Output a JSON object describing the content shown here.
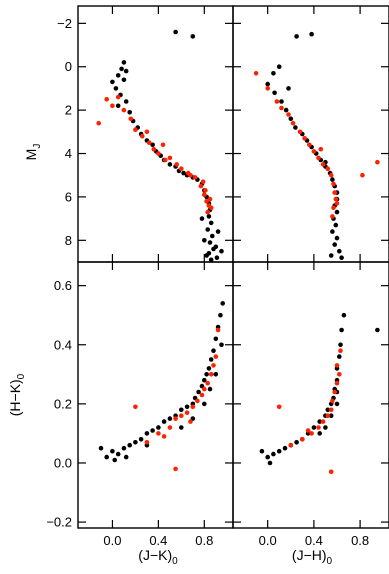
{
  "chart_data": [
    {
      "type": "scatter",
      "panel": "top-left",
      "ylabel_main": "M",
      "ylabel_sub": "J",
      "xlim": [
        -0.3,
        1.05
      ],
      "ylim": [
        9.0,
        -2.8
      ],
      "y_inverted": true,
      "yticks": [
        -2,
        0,
        2,
        4,
        6,
        8
      ],
      "ytick_labels": [
        "−2",
        "0",
        "2",
        "4",
        "6",
        "8"
      ],
      "series": [
        {
          "color": "#000000",
          "points": [
            [
              0.05,
              0.4
            ],
            [
              0.08,
              0.1
            ],
            [
              0.1,
              -0.2
            ],
            [
              0.0,
              0.7
            ],
            [
              0.1,
              0.6
            ],
            [
              0.03,
              1.0
            ],
            [
              0.07,
              1.3
            ],
            [
              0.12,
              1.6
            ],
            [
              0.05,
              1.8
            ],
            [
              0.15,
              2.1
            ],
            [
              0.18,
              2.5
            ],
            [
              0.22,
              2.8
            ],
            [
              0.25,
              3.1
            ],
            [
              0.3,
              3.4
            ],
            [
              0.35,
              3.6
            ],
            [
              0.38,
              3.9
            ],
            [
              0.42,
              4.1
            ],
            [
              0.45,
              4.3
            ],
            [
              0.5,
              4.5
            ],
            [
              0.55,
              4.6
            ],
            [
              0.58,
              4.8
            ],
            [
              0.62,
              4.9
            ],
            [
              0.65,
              5.0
            ],
            [
              0.7,
              5.1
            ],
            [
              0.74,
              5.2
            ],
            [
              0.78,
              5.4
            ],
            [
              0.8,
              5.7
            ],
            [
              0.82,
              6.0
            ],
            [
              0.84,
              6.3
            ],
            [
              0.85,
              6.6
            ],
            [
              0.84,
              6.9
            ],
            [
              0.86,
              7.2
            ],
            [
              0.83,
              7.5
            ],
            [
              0.87,
              7.8
            ],
            [
              0.85,
              8.1
            ],
            [
              0.88,
              8.4
            ],
            [
              0.84,
              8.6
            ],
            [
              0.9,
              8.3
            ],
            [
              0.8,
              8.0
            ],
            [
              0.92,
              7.6
            ],
            [
              0.78,
              7.0
            ],
            [
              0.91,
              8.8
            ],
            [
              0.86,
              8.9
            ],
            [
              0.82,
              8.7
            ],
            [
              0.55,
              -1.6
            ],
            [
              0.7,
              -1.4
            ],
            [
              0.12,
              0.2
            ],
            [
              0.95,
              8.5
            ]
          ]
        },
        {
          "color": "#ff2200",
          "points": [
            [
              -0.05,
              1.5
            ],
            [
              0.0,
              1.8
            ],
            [
              -0.12,
              2.6
            ],
            [
              0.05,
              1.4
            ],
            [
              0.1,
              2.0
            ],
            [
              0.16,
              2.4
            ],
            [
              0.2,
              2.9
            ],
            [
              0.26,
              3.2
            ],
            [
              0.32,
              3.5
            ],
            [
              0.36,
              3.8
            ],
            [
              0.4,
              4.0
            ],
            [
              0.46,
              4.3
            ],
            [
              0.5,
              4.2
            ],
            [
              0.56,
              4.5
            ],
            [
              0.6,
              4.7
            ],
            [
              0.66,
              4.9
            ],
            [
              0.72,
              5.1
            ],
            [
              0.77,
              5.5
            ],
            [
              0.8,
              5.9
            ],
            [
              0.82,
              6.2
            ],
            [
              0.84,
              6.4
            ],
            [
              0.83,
              6.7
            ],
            [
              0.85,
              6.1
            ],
            [
              0.81,
              5.7
            ],
            [
              0.86,
              6.5
            ],
            [
              0.79,
              5.3
            ],
            [
              0.68,
              5.0
            ],
            [
              0.3,
              3.0
            ],
            [
              0.44,
              3.6
            ]
          ]
        }
      ]
    },
    {
      "type": "scatter",
      "panel": "top-right",
      "xlim": [
        -0.3,
        1.05
      ],
      "ylim": [
        9.0,
        -2.8
      ],
      "y_inverted": true,
      "series": [
        {
          "color": "#000000",
          "points": [
            [
              0.05,
              0.3
            ],
            [
              0.1,
              0.0
            ],
            [
              0.0,
              0.8
            ],
            [
              0.06,
              1.2
            ],
            [
              0.12,
              1.6
            ],
            [
              0.16,
              2.0
            ],
            [
              0.2,
              2.4
            ],
            [
              0.24,
              2.8
            ],
            [
              0.3,
              3.1
            ],
            [
              0.34,
              3.4
            ],
            [
              0.38,
              3.7
            ],
            [
              0.42,
              4.0
            ],
            [
              0.46,
              4.3
            ],
            [
              0.5,
              4.6
            ],
            [
              0.54,
              4.9
            ],
            [
              0.56,
              5.2
            ],
            [
              0.58,
              5.5
            ],
            [
              0.6,
              5.8
            ],
            [
              0.6,
              6.1
            ],
            [
              0.58,
              6.4
            ],
            [
              0.6,
              6.7
            ],
            [
              0.57,
              7.0
            ],
            [
              0.59,
              7.3
            ],
            [
              0.56,
              7.6
            ],
            [
              0.6,
              7.9
            ],
            [
              0.58,
              8.2
            ],
            [
              0.62,
              8.5
            ],
            [
              0.55,
              8.7
            ],
            [
              0.64,
              8.8
            ],
            [
              0.25,
              -1.4
            ],
            [
              0.38,
              -1.5
            ],
            [
              0.18,
              1.0
            ],
            [
              0.5,
              4.4
            ]
          ]
        },
        {
          "color": "#ff2200",
          "points": [
            [
              -0.1,
              0.3
            ],
            [
              0.0,
              1.0
            ],
            [
              0.08,
              1.6
            ],
            [
              0.12,
              1.9
            ],
            [
              0.18,
              2.2
            ],
            [
              0.22,
              2.6
            ],
            [
              0.28,
              3.0
            ],
            [
              0.32,
              3.3
            ],
            [
              0.36,
              3.6
            ],
            [
              0.4,
              3.9
            ],
            [
              0.44,
              4.2
            ],
            [
              0.48,
              4.5
            ],
            [
              0.52,
              4.7
            ],
            [
              0.55,
              5.0
            ],
            [
              0.57,
              5.4
            ],
            [
              0.58,
              5.8
            ],
            [
              0.59,
              6.1
            ],
            [
              0.57,
              6.5
            ],
            [
              0.6,
              6.3
            ],
            [
              0.56,
              6.9
            ],
            [
              0.95,
              4.4
            ],
            [
              0.82,
              5.0
            ],
            [
              0.46,
              3.8
            ]
          ]
        }
      ]
    },
    {
      "type": "scatter",
      "panel": "bottom-left",
      "xlabel_main": "(J−K)",
      "xlabel_sub": "0",
      "ylabel_main": "(H−K)",
      "ylabel_sub": "0",
      "xlim": [
        -0.3,
        1.05
      ],
      "ylim": [
        -0.22,
        0.68
      ],
      "xticks": [
        0.0,
        0.4,
        0.8
      ],
      "xtick_labels": [
        "0.0",
        "0.4",
        "0.8"
      ],
      "yticks": [
        -0.2,
        0.0,
        0.2,
        0.4,
        0.6
      ],
      "ytick_labels": [
        "−0.2",
        "0.0",
        "0.2",
        "0.4",
        "0.6"
      ],
      "series": [
        {
          "color": "#000000",
          "points": [
            [
              -0.05,
              0.02
            ],
            [
              0.0,
              0.04
            ],
            [
              0.05,
              0.03
            ],
            [
              0.1,
              0.05
            ],
            [
              0.15,
              0.06
            ],
            [
              0.2,
              0.07
            ],
            [
              0.25,
              0.08
            ],
            [
              0.3,
              0.1
            ],
            [
              0.35,
              0.11
            ],
            [
              0.4,
              0.12
            ],
            [
              0.45,
              0.14
            ],
            [
              0.5,
              0.15
            ],
            [
              0.55,
              0.16
            ],
            [
              0.6,
              0.18
            ],
            [
              0.65,
              0.19
            ],
            [
              0.7,
              0.2
            ],
            [
              0.72,
              0.22
            ],
            [
              0.75,
              0.24
            ],
            [
              0.78,
              0.26
            ],
            [
              0.8,
              0.28
            ],
            [
              0.82,
              0.3
            ],
            [
              0.84,
              0.32
            ],
            [
              0.86,
              0.35
            ],
            [
              0.88,
              0.38
            ],
            [
              0.9,
              0.42
            ],
            [
              0.92,
              0.46
            ],
            [
              0.94,
              0.5
            ],
            [
              0.96,
              0.54
            ],
            [
              0.85,
              0.25
            ],
            [
              0.8,
              0.2
            ],
            [
              0.9,
              0.3
            ],
            [
              0.7,
              0.15
            ],
            [
              0.6,
              0.12
            ],
            [
              0.12,
              0.02
            ],
            [
              0.02,
              0.01
            ],
            [
              0.3,
              0.06
            ],
            [
              -0.1,
              0.05
            ],
            [
              0.95,
              0.4
            ]
          ]
        },
        {
          "color": "#ff2200",
          "points": [
            [
              0.3,
              0.07
            ],
            [
              0.4,
              0.1
            ],
            [
              0.5,
              0.12
            ],
            [
              0.55,
              0.15
            ],
            [
              0.6,
              0.16
            ],
            [
              0.65,
              0.17
            ],
            [
              0.7,
              0.19
            ],
            [
              0.74,
              0.21
            ],
            [
              0.78,
              0.23
            ],
            [
              0.8,
              0.25
            ],
            [
              0.83,
              0.27
            ],
            [
              0.86,
              0.3
            ],
            [
              0.88,
              0.33
            ],
            [
              0.9,
              0.36
            ],
            [
              0.92,
              0.45
            ],
            [
              0.2,
              0.19
            ],
            [
              0.55,
              -0.02
            ],
            [
              0.45,
              0.09
            ],
            [
              0.68,
              0.14
            ]
          ]
        }
      ]
    },
    {
      "type": "scatter",
      "panel": "bottom-right",
      "xlabel_main": "(J−H)",
      "xlabel_sub": "0",
      "xlim": [
        -0.3,
        1.05
      ],
      "ylim": [
        -0.22,
        0.68
      ],
      "xticks": [
        0.0,
        0.4,
        0.8
      ],
      "xtick_labels": [
        "0.0",
        "0.4",
        "0.8"
      ],
      "series": [
        {
          "color": "#000000",
          "points": [
            [
              0.0,
              0.02
            ],
            [
              0.05,
              0.03
            ],
            [
              0.1,
              0.04
            ],
            [
              0.15,
              0.05
            ],
            [
              0.2,
              0.06
            ],
            [
              0.25,
              0.07
            ],
            [
              0.3,
              0.08
            ],
            [
              0.35,
              0.1
            ],
            [
              0.4,
              0.12
            ],
            [
              0.45,
              0.14
            ],
            [
              0.5,
              0.16
            ],
            [
              0.52,
              0.18
            ],
            [
              0.55,
              0.2
            ],
            [
              0.57,
              0.22
            ],
            [
              0.58,
              0.25
            ],
            [
              0.6,
              0.28
            ],
            [
              0.6,
              0.32
            ],
            [
              0.62,
              0.36
            ],
            [
              0.63,
              0.4
            ],
            [
              0.64,
              0.45
            ],
            [
              0.66,
              0.5
            ],
            [
              0.55,
              0.16
            ],
            [
              0.5,
              0.12
            ],
            [
              0.6,
              0.2
            ],
            [
              0.45,
              0.1
            ],
            [
              0.02,
              0.0
            ],
            [
              -0.05,
              0.04
            ],
            [
              0.6,
              0.24
            ],
            [
              0.95,
              0.45
            ]
          ]
        },
        {
          "color": "#ff2200",
          "points": [
            [
              0.2,
              0.06
            ],
            [
              0.3,
              0.08
            ],
            [
              0.38,
              0.1
            ],
            [
              0.44,
              0.12
            ],
            [
              0.48,
              0.14
            ],
            [
              0.52,
              0.16
            ],
            [
              0.55,
              0.18
            ],
            [
              0.56,
              0.21
            ],
            [
              0.58,
              0.24
            ],
            [
              0.6,
              0.27
            ],
            [
              0.62,
              0.3
            ],
            [
              0.6,
              0.33
            ],
            [
              0.63,
              0.38
            ],
            [
              0.1,
              0.19
            ],
            [
              0.55,
              -0.03
            ],
            [
              0.35,
              0.11
            ]
          ]
        }
      ]
    }
  ]
}
